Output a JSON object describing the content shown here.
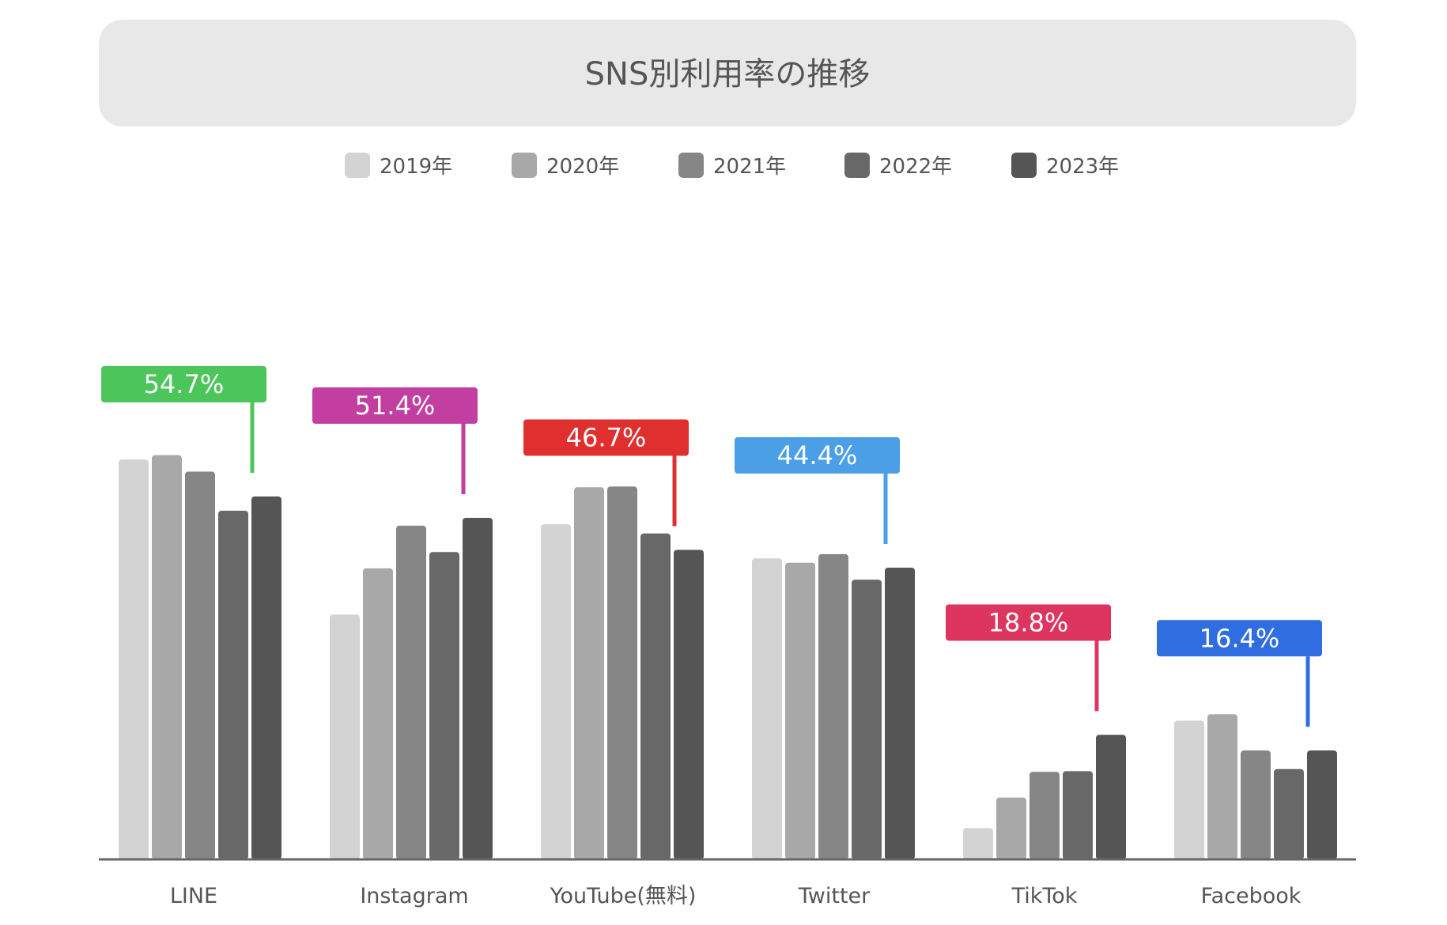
{
  "chart_data": {
    "type": "bar",
    "title": "SNS別利用率の推移",
    "categories": [
      "LINE",
      "Instagram",
      "YouTube(無料)",
      "Twitter",
      "TikTok",
      "Facebook"
    ],
    "series": [
      {
        "name": "2019年",
        "color": "#d3d3d3",
        "values": [
          56.2,
          34.4,
          47.1,
          42.3,
          4.4,
          19.5
        ]
      },
      {
        "name": "2020年",
        "color": "#a8a8a8",
        "values": [
          56.8,
          40.9,
          52.3,
          41.7,
          8.7,
          20.4
        ]
      },
      {
        "name": "2021年",
        "color": "#868686",
        "values": [
          54.5,
          46.9,
          52.4,
          42.9,
          12.3,
          15.3
        ]
      },
      {
        "name": "2022年",
        "color": "#686868",
        "values": [
          49.0,
          43.2,
          45.8,
          39.3,
          12.4,
          12.7
        ]
      },
      {
        "name": "2023年",
        "color": "#555555",
        "values": [
          51.0,
          48.0,
          43.5,
          41.0,
          17.5,
          15.3
        ]
      }
    ],
    "callouts": [
      {
        "category": "LINE",
        "label": "54.7%",
        "color": "#4cc65a"
      },
      {
        "category": "Instagram",
        "label": "51.4%",
        "color": "#c23fa1"
      },
      {
        "category": "YouTube(無料)",
        "label": "46.7%",
        "color": "#e02f2f"
      },
      {
        "category": "Twitter",
        "label": "44.4%",
        "color": "#4a9fe6"
      },
      {
        "category": "TikTok",
        "label": "18.8%",
        "color": "#dd3560"
      },
      {
        "category": "Facebook",
        "label": "16.4%",
        "color": "#2f6de0"
      }
    ],
    "ylim": [
      0,
      70
    ],
    "grid": false,
    "legend_position": "top-center"
  }
}
